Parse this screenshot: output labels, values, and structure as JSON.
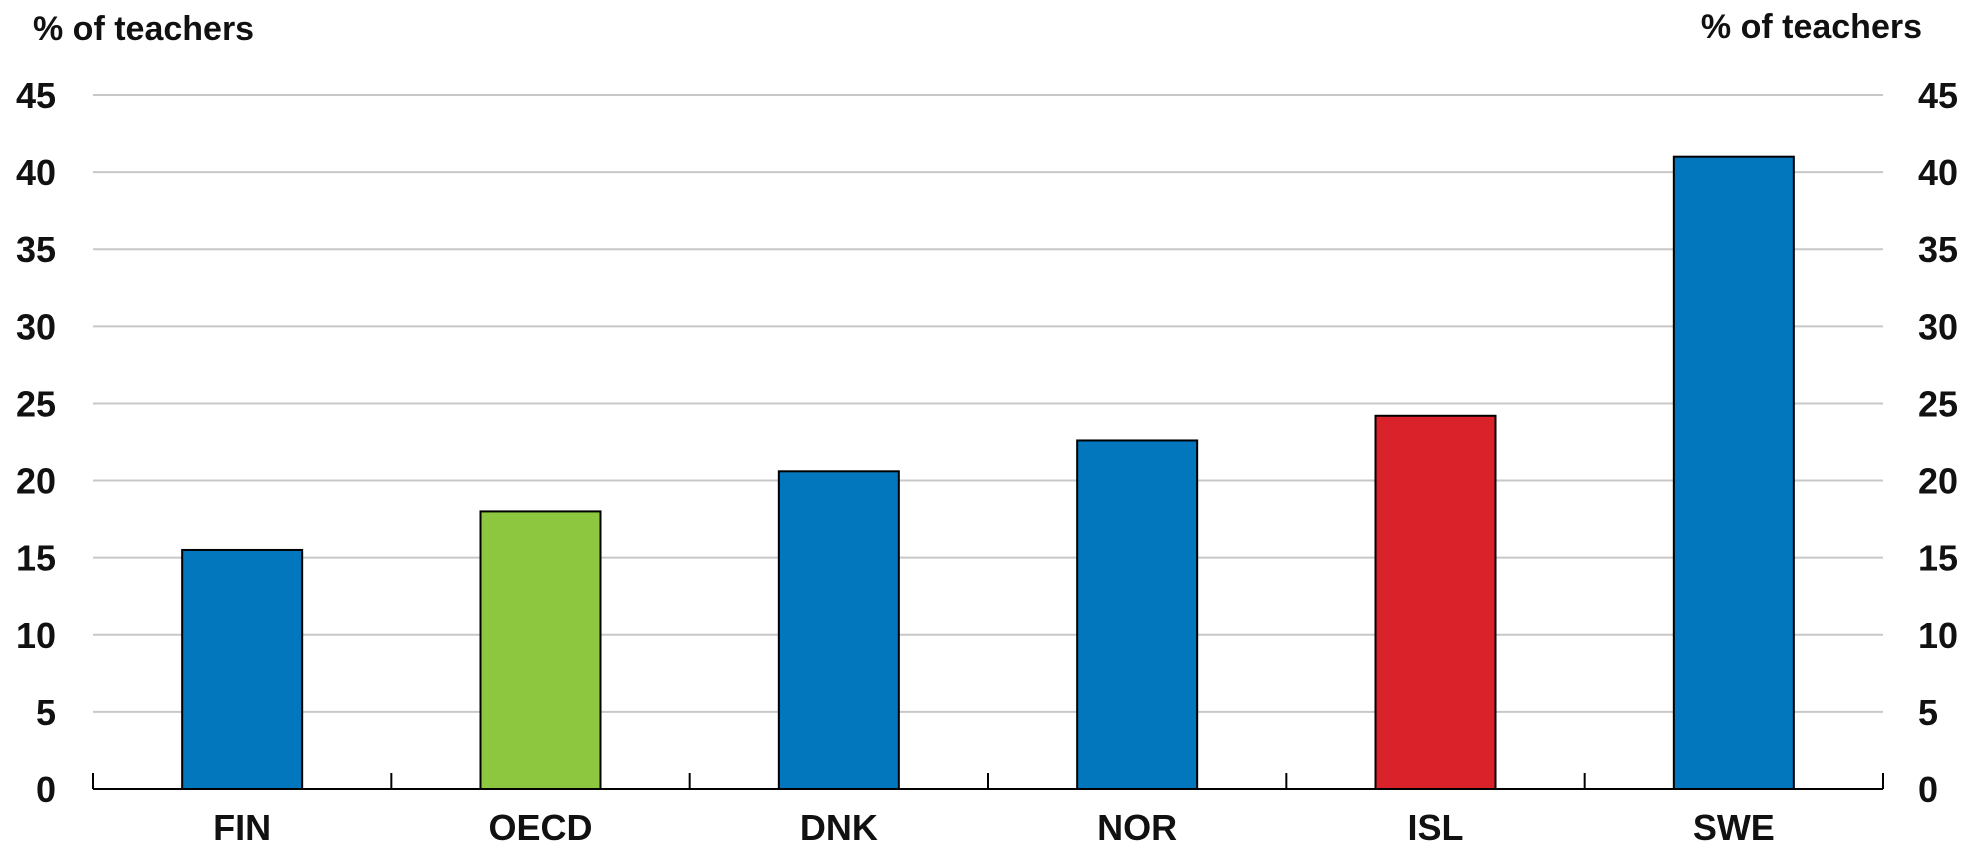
{
  "chart_data": {
    "type": "bar",
    "title": "",
    "left_axis_label": "% of teachers",
    "right_axis_label": "% of teachers",
    "categories": [
      "FIN",
      "OECD",
      "DNK",
      "NOR",
      "ISL",
      "SWE"
    ],
    "values": [
      15.5,
      18.0,
      20.6,
      22.6,
      24.2,
      41.0
    ],
    "bar_colors": [
      "#0277bd",
      "#8dc63f",
      "#0277bd",
      "#0277bd",
      "#d9222a",
      "#0277bd"
    ],
    "ylim": [
      0,
      45
    ],
    "yticks": [
      0,
      5,
      10,
      15,
      20,
      25,
      30,
      35,
      40,
      45
    ],
    "grid": true,
    "legend": "none"
  }
}
